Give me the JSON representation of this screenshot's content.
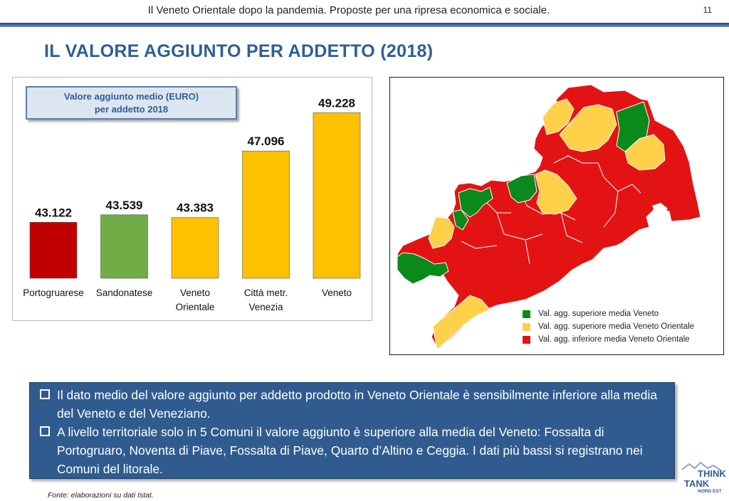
{
  "header": {
    "text": "Il Veneto Orientale dopo la pandemia. Proposte per una ripresa economica e sociale.",
    "page_number": "11"
  },
  "page_title": "IL VALORE AGGIUNTO PER ADDETTO (2018)",
  "chart_data": {
    "type": "bar",
    "title_lines": [
      "Valore aggiunto medio (EURO)",
      "per addetto 2018"
    ],
    "categories": [
      [
        "Portogruarese"
      ],
      [
        "Sandonatese"
      ],
      [
        "Veneto",
        "Orientale"
      ],
      [
        "Città metr.",
        "Venezia"
      ],
      [
        "Veneto"
      ]
    ],
    "values": [
      43122,
      43539,
      43383,
      47096,
      49228
    ],
    "value_labels": [
      "43.122",
      "43.539",
      "43.383",
      "47.096",
      "49.228"
    ],
    "colors": [
      "#c00000",
      "#70ad47",
      "#ffc000",
      "#ffc000",
      "#ffc000"
    ],
    "ylim": [
      40000,
      50000
    ],
    "grid": false
  },
  "map": {
    "legend": [
      {
        "label": "Val. agg. superiore media Veneto",
        "color": "#0a8a1a"
      },
      {
        "label": "Val. agg. superiore media Veneto Orientale",
        "color": "#ffd04a"
      },
      {
        "label": "Val. agg. inferiore media Veneto Orientale",
        "color": "#e41313"
      }
    ]
  },
  "notes": [
    "Il dato medio del valore aggiunto per addetto prodotto in Veneto Orientale è sensibilmente inferiore alla media del Veneto e del Veneziano.",
    "A livello territoriale solo in 5 Comuni il valore aggiunto è superiore alla media del Veneto: Fossalta di Portogruaro, Noventa di Piave, Fossalta di Piave, Quarto d’Altino e Ceggia. I dati più bassi si registrano nei Comuni del litorale."
  ],
  "source": "Fonte: elaborazioni su dati Istat.",
  "logo": {
    "line1": "THINK",
    "line2": "TANK",
    "line3": "NORD EST"
  }
}
